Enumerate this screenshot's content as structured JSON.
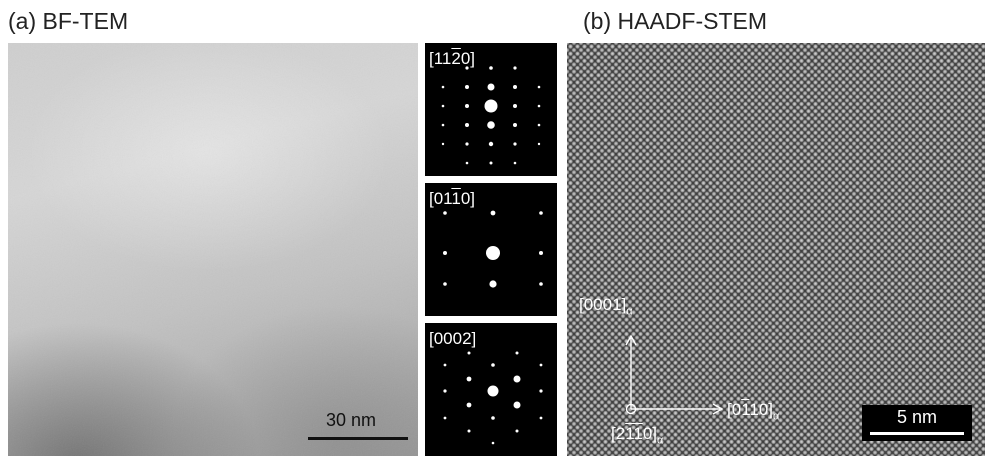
{
  "panels": {
    "a": {
      "label": "(a) BF-TEM",
      "scale_bar": "30 nm",
      "diffraction": [
        {
          "pre": "[11",
          "over": "2",
          "post": "0]"
        },
        {
          "pre": "[01",
          "over": "1",
          "post": "0]"
        },
        {
          "pre": "[0002]",
          "over": "",
          "post": ""
        }
      ]
    },
    "b": {
      "label": "(b) HAADF-STEM",
      "scale_bar": "5 nm",
      "axis_vertical": {
        "text": "[0001]",
        "sub": "α"
      },
      "axis_horizontal": {
        "pre": "[0",
        "over": "1",
        "post": "10]",
        "sub": "α"
      },
      "zone_axis": {
        "pre": "[2",
        "over": "11",
        "post": "0]",
        "sub": "α"
      }
    }
  },
  "colors": {
    "background": "#ffffff",
    "text": "#222222",
    "spot": "#ffffff"
  }
}
